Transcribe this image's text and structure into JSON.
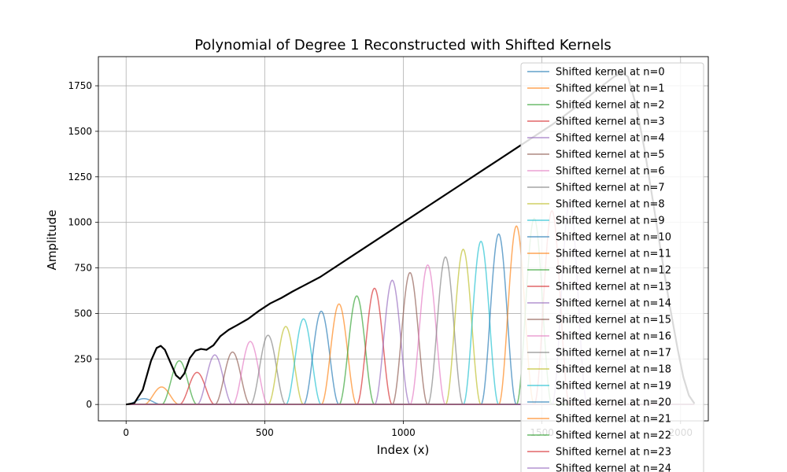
{
  "chart_data": {
    "type": "line",
    "title": "Polynomial of Degree 1 Reconstructed with Shifted Kernels",
    "xlabel": "Index (x)",
    "ylabel": "Amplitude",
    "xlim": [
      -100,
      2100
    ],
    "ylim": [
      -90,
      1910
    ],
    "x_ticks": [
      0,
      500,
      1000,
      1500,
      2000
    ],
    "y_ticks": [
      0,
      250,
      500,
      750,
      1000,
      1250,
      1500,
      1750
    ],
    "grid": true,
    "legend_position": "upper-right",
    "kernel": {
      "spacing": 64,
      "center_offset": 64,
      "width": 32
    },
    "series": [
      {
        "name": "Shifted kernel at n=0",
        "peak": 32,
        "color": "#1f77b4"
      },
      {
        "name": "Shifted kernel at n=1",
        "peak": 96,
        "color": "#ff7f0e"
      },
      {
        "name": "Shifted kernel at n=2",
        "peak": 240,
        "color": "#2ca02c"
      },
      {
        "name": "Shifted kernel at n=3",
        "peak": 176,
        "color": "#d62728"
      },
      {
        "name": "Shifted kernel at n=4",
        "peak": 272,
        "color": "#9467bd"
      },
      {
        "name": "Shifted kernel at n=5",
        "peak": 288,
        "color": "#8c564b"
      },
      {
        "name": "Shifted kernel at n=6",
        "peak": 346,
        "color": "#e377c2"
      },
      {
        "name": "Shifted kernel at n=7",
        "peak": 380,
        "color": "#7f7f7f"
      },
      {
        "name": "Shifted kernel at n=8",
        "peak": 428,
        "color": "#bcbd22"
      },
      {
        "name": "Shifted kernel at n=9",
        "peak": 470,
        "color": "#17becf"
      },
      {
        "name": "Shifted kernel at n=10",
        "peak": 512,
        "color": "#1f77b4"
      },
      {
        "name": "Shifted kernel at n=11",
        "peak": 552,
        "color": "#ff7f0e"
      },
      {
        "name": "Shifted kernel at n=12",
        "peak": 596,
        "color": "#2ca02c"
      },
      {
        "name": "Shifted kernel at n=13",
        "peak": 638,
        "color": "#d62728"
      },
      {
        "name": "Shifted kernel at n=14",
        "peak": 682,
        "color": "#9467bd"
      },
      {
        "name": "Shifted kernel at n=15",
        "peak": 724,
        "color": "#8c564b"
      },
      {
        "name": "Shifted kernel at n=16",
        "peak": 766,
        "color": "#e377c2"
      },
      {
        "name": "Shifted kernel at n=17",
        "peak": 810,
        "color": "#7f7f7f"
      },
      {
        "name": "Shifted kernel at n=18",
        "peak": 852,
        "color": "#bcbd22"
      },
      {
        "name": "Shifted kernel at n=19",
        "peak": 896,
        "color": "#17becf"
      },
      {
        "name": "Shifted kernel at n=20",
        "peak": 936,
        "color": "#1f77b4"
      },
      {
        "name": "Shifted kernel at n=21",
        "peak": 980,
        "color": "#ff7f0e"
      },
      {
        "name": "Shifted kernel at n=22",
        "peak": 1022,
        "color": "#2ca02c"
      },
      {
        "name": "Shifted kernel at n=23",
        "peak": 1064,
        "color": "#d62728"
      },
      {
        "name": "Shifted kernel at n=24",
        "peak": 1108,
        "color": "#9467bd"
      }
    ],
    "reconstruction": {
      "color": "#000000",
      "x": [
        0,
        30,
        60,
        90,
        110,
        125,
        140,
        160,
        180,
        195,
        210,
        230,
        250,
        270,
        290,
        315,
        340,
        370,
        400,
        440,
        480,
        520,
        560,
        600,
        700,
        800,
        900,
        1000,
        1100,
        1200,
        1300,
        1400,
        1500,
        1540,
        1580,
        1620,
        1660,
        1700,
        1730,
        1760,
        1790,
        1810,
        1840,
        1870,
        1900,
        1930,
        1960,
        1990,
        2010,
        2030,
        2050
      ],
      "y": [
        0,
        8,
        80,
        240,
        310,
        322,
        300,
        230,
        160,
        140,
        170,
        255,
        295,
        305,
        300,
        325,
        375,
        410,
        435,
        470,
        515,
        555,
        585,
        620,
        700,
        800,
        900,
        1000,
        1100,
        1200,
        1300,
        1400,
        1500,
        1540,
        1585,
        1630,
        1680,
        1730,
        1765,
        1800,
        1822,
        1800,
        1640,
        1400,
        1120,
        830,
        550,
        300,
        150,
        50,
        5
      ]
    }
  }
}
